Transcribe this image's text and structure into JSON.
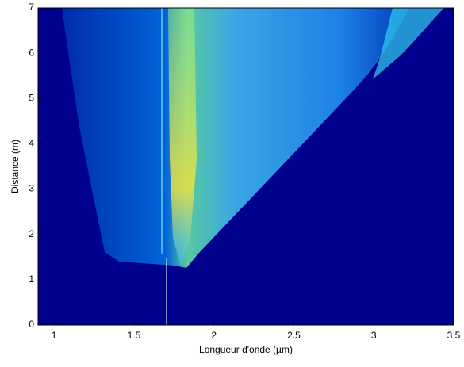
{
  "chart_data": {
    "type": "heatmap",
    "xlabel": "Longueur d'onde (µm)",
    "ylabel": "Distance (m)",
    "xlim": [
      0.9,
      3.5
    ],
    "xticks": [
      1,
      1.5,
      2,
      2.5,
      3,
      3.5
    ],
    "ylim": [
      0,
      7
    ],
    "yticks": [
      0,
      1,
      2,
      3,
      4,
      5,
      6,
      7
    ],
    "background": "#00008f"
  }
}
